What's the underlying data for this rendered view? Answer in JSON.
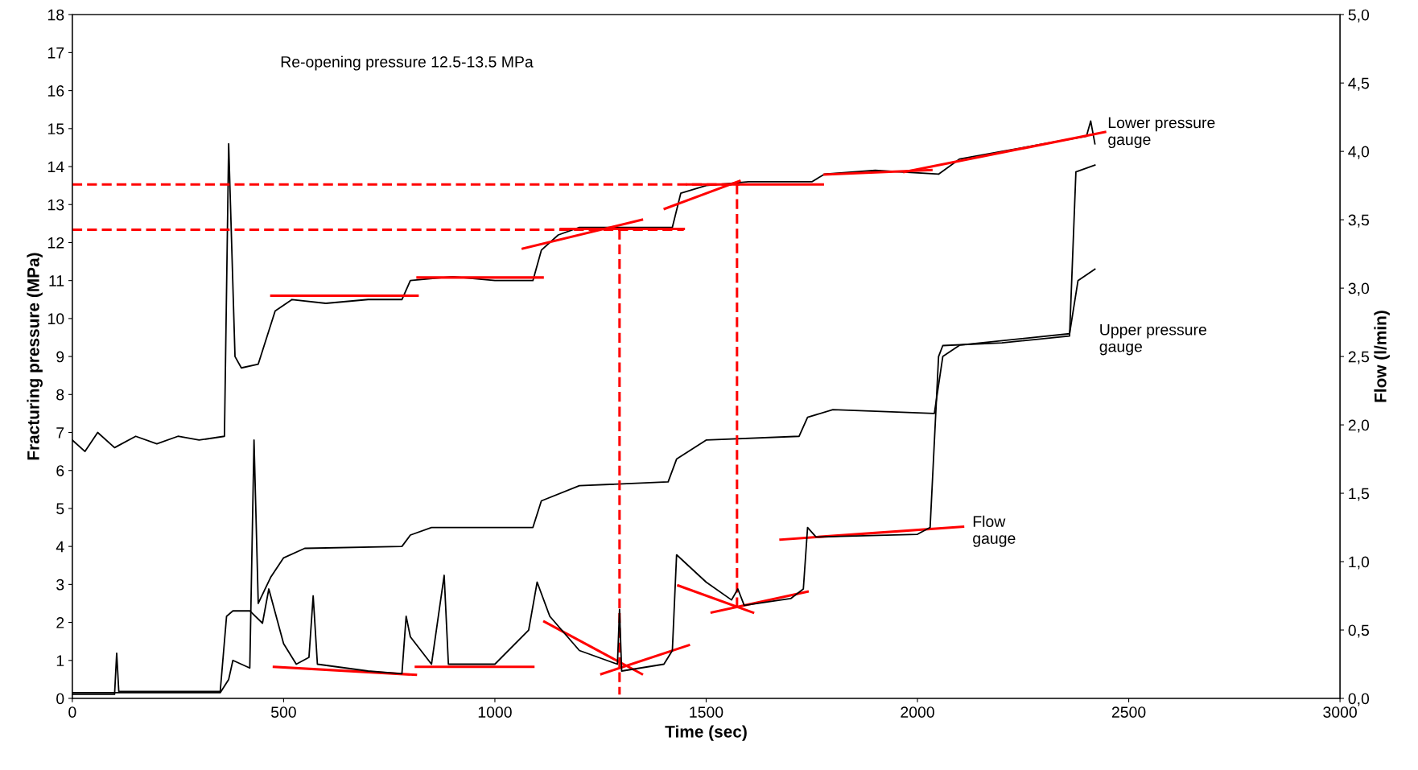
{
  "chart_data": {
    "type": "line",
    "xlabel": "Time (sec)",
    "ylabel": "Fracturing pressure (MPa)",
    "y2label": "Flow (l/min)",
    "xlim": [
      0,
      3000
    ],
    "xticks": [
      0,
      500,
      1000,
      1500,
      2000,
      2500,
      3000
    ],
    "ylim": [
      0,
      18
    ],
    "yticks": [
      0,
      1,
      2,
      3,
      4,
      5,
      6,
      7,
      8,
      9,
      10,
      11,
      12,
      13,
      14,
      15,
      16,
      17,
      18
    ],
    "y2lim": [
      0,
      5
    ],
    "y2ticks": [
      {
        "value": 0,
        "label": "0,0"
      },
      {
        "value": 0.5,
        "label": "0,5"
      },
      {
        "value": 1,
        "label": "1,0"
      },
      {
        "value": 1.5,
        "label": "1,5"
      },
      {
        "value": 2,
        "label": "2,0"
      },
      {
        "value": 2.5,
        "label": "2,5"
      },
      {
        "value": 3,
        "label": "3,0"
      },
      {
        "value": 3.5,
        "label": "3,5"
      },
      {
        "value": 4,
        "label": "4,0"
      },
      {
        "value": 4.5,
        "label": "4,5"
      },
      {
        "value": 5,
        "label": "5,0"
      }
    ],
    "grid": false,
    "marker": "none",
    "annotations": [
      "Re-opening pressure 12.5-13.5 MPa"
    ],
    "series": [
      {
        "name": "Lower pressure gauge",
        "color": "#000000",
        "x": [
          0,
          30,
          60,
          100,
          150,
          200,
          250,
          300,
          360,
          370,
          385,
          400,
          440,
          460,
          480,
          520,
          600,
          700,
          780,
          800,
          900,
          1000,
          1090,
          1110,
          1150,
          1200,
          1300,
          1420,
          1440,
          1500,
          1600,
          1750,
          1780,
          1900,
          2050,
          2100,
          2200,
          2300,
          2400,
          2410,
          2420
        ],
        "values": [
          6.8,
          6.5,
          7.0,
          6.6,
          6.9,
          6.7,
          6.9,
          6.8,
          6.9,
          14.6,
          9.0,
          8.7,
          8.8,
          9.5,
          10.2,
          10.5,
          10.4,
          10.5,
          10.5,
          11.0,
          11.1,
          11.0,
          11.0,
          11.8,
          12.2,
          12.4,
          12.4,
          12.4,
          13.3,
          13.5,
          13.6,
          13.6,
          13.8,
          13.9,
          13.8,
          14.2,
          14.4,
          14.6,
          14.8,
          15.2,
          14.6
        ]
      },
      {
        "name": "Upper pressure gauge",
        "color": "#000000",
        "x": [
          0,
          350,
          370,
          380,
          420,
          430,
          440,
          470,
          500,
          550,
          780,
          800,
          850,
          1090,
          1110,
          1200,
          1410,
          1430,
          1500,
          1720,
          1740,
          1800,
          2040,
          2060,
          2100,
          2360,
          2380,
          2420
        ],
        "values": [
          0.15,
          0.15,
          0.5,
          1.0,
          0.8,
          6.8,
          2.5,
          3.2,
          3.7,
          3.95,
          4.0,
          4.3,
          4.5,
          4.5,
          5.2,
          5.6,
          5.7,
          6.3,
          6.8,
          6.9,
          7.4,
          7.6,
          7.5,
          9.0,
          9.3,
          9.6,
          11.0,
          11.3
        ]
      },
      {
        "name": "Flow gauge",
        "axis": "y2",
        "color": "#000000",
        "x": [
          0,
          100,
          105,
          110,
          350,
          365,
          380,
          420,
          450,
          465,
          500,
          530,
          560,
          570,
          580,
          700,
          780,
          790,
          800,
          850,
          880,
          890,
          1000,
          1080,
          1100,
          1130,
          1200,
          1290,
          1295,
          1300,
          1400,
          1420,
          1430,
          1500,
          1560,
          1575,
          1590,
          1700,
          1730,
          1740,
          1760,
          2000,
          2030,
          2050,
          2060,
          2200,
          2360,
          2375,
          2420
        ],
        "values": [
          0.03,
          0.03,
          0.33,
          0.05,
          0.05,
          0.6,
          0.64,
          0.64,
          0.55,
          0.8,
          0.4,
          0.25,
          0.3,
          0.75,
          0.25,
          0.2,
          0.18,
          0.6,
          0.45,
          0.25,
          0.9,
          0.25,
          0.25,
          0.5,
          0.85,
          0.6,
          0.35,
          0.25,
          0.65,
          0.2,
          0.25,
          0.35,
          1.05,
          0.85,
          0.72,
          0.8,
          0.68,
          0.73,
          0.8,
          1.25,
          1.18,
          1.2,
          1.25,
          2.5,
          2.58,
          2.6,
          2.65,
          3.85,
          3.9
        ]
      },
      {
        "color": "#ff0000",
        "x": [
          471,
          817
        ],
        "values": [
          10.6,
          10.6
        ]
      },
      {
        "color": "#ff0000",
        "x": [
          817,
          1113
        ],
        "values": [
          11.08,
          11.08
        ]
      },
      {
        "color": "#ff0000",
        "x": [
          1066,
          1348
        ],
        "values": [
          11.84,
          12.6
        ]
      },
      {
        "color": "#ff0000",
        "x": [
          1156,
          1447
        ],
        "values": [
          12.36,
          12.36
        ]
      },
      {
        "color": "#ff0000",
        "x": [
          1402,
          1579
        ],
        "values": [
          12.89,
          13.62
        ]
      },
      {
        "color": "#ff0000",
        "x": [
          1455,
          1776
        ],
        "values": [
          13.53,
          13.53
        ]
      },
      {
        "color": "#ff0000",
        "x": [
          1780,
          2033
        ],
        "values": [
          13.79,
          13.91
        ]
      },
      {
        "color": "#ff0000",
        "x": [
          1969,
          2444
        ],
        "values": [
          13.86,
          14.91
        ]
      },
      {
        "color": "#ff0000",
        "x": [
          477,
          813
        ],
        "values": [
          0.83,
          0.62
        ]
      },
      {
        "color": "#ff0000",
        "x": [
          813,
          1091
        ],
        "values": [
          0.83,
          0.83
        ]
      },
      {
        "color": "#ff0000",
        "x": [
          1117,
          1348
        ],
        "values": [
          2.02,
          0.64
        ]
      },
      {
        "color": "#ff0000",
        "x": [
          1252,
          1459
        ],
        "values": [
          0.64,
          1.4
        ]
      },
      {
        "color": "#ff0000",
        "x": [
          1434,
          1611
        ],
        "values": [
          2.97,
          2.26
        ]
      },
      {
        "color": "#ff0000",
        "x": [
          1513,
          1740
        ],
        "values": [
          2.26,
          2.81
        ]
      },
      {
        "color": "#ff0000",
        "x": [
          1676,
          2108
        ],
        "values": [
          4.18,
          4.52
        ]
      },
      {
        "color": "#ff0000",
        "line_style": "dashed",
        "x": [
          0,
          1579
        ],
        "values": [
          13.53,
          13.53
        ]
      },
      {
        "color": "#ff0000",
        "line_style": "dashed",
        "x": [
          0,
          1447
        ],
        "values": [
          12.34,
          12.34
        ]
      },
      {
        "color": "#ff0000",
        "line_style": "dashed",
        "x": [
          1295,
          1295
        ],
        "values": [
          12.34,
          0.1
        ]
      },
      {
        "color": "#ff0000",
        "line_style": "dashed",
        "x": [
          1573,
          1573
        ],
        "values": [
          13.53,
          2.33
        ]
      }
    ]
  }
}
